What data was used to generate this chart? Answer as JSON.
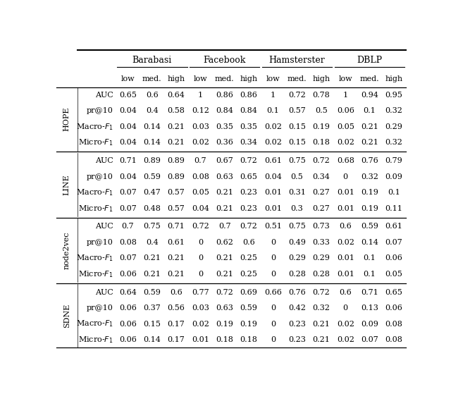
{
  "col_groups": [
    "Barabasi",
    "Facebook",
    "Hamsterster",
    "DBLP"
  ],
  "col_subheaders": [
    "low",
    "med.",
    "high",
    "low",
    "med.",
    "high",
    "low",
    "med.",
    "high",
    "low",
    "med.",
    "high"
  ],
  "row_groups": [
    "HOPE",
    "LINE",
    "node2vec",
    "SDNE"
  ],
  "data": {
    "HOPE": {
      "AUC": [
        "0.65",
        "0.6",
        "0.64",
        "1",
        "0.86",
        "0.86",
        "1",
        "0.72",
        "0.78",
        "1",
        "0.94",
        "0.95"
      ],
      "pr@10": [
        "0.04",
        "0.4",
        "0.58",
        "0.12",
        "0.84",
        "0.84",
        "0.1",
        "0.57",
        "0.5",
        "0.06",
        "0.1",
        "0.32"
      ],
      "Macro-F1": [
        "0.04",
        "0.14",
        "0.21",
        "0.03",
        "0.35",
        "0.35",
        "0.02",
        "0.15",
        "0.19",
        "0.05",
        "0.21",
        "0.29"
      ],
      "Micro-F1": [
        "0.04",
        "0.14",
        "0.21",
        "0.02",
        "0.36",
        "0.34",
        "0.02",
        "0.15",
        "0.18",
        "0.02",
        "0.21",
        "0.32"
      ]
    },
    "LINE": {
      "AUC": [
        "0.71",
        "0.89",
        "0.89",
        "0.7",
        "0.67",
        "0.72",
        "0.61",
        "0.75",
        "0.72",
        "0.68",
        "0.76",
        "0.79"
      ],
      "pr@10": [
        "0.04",
        "0.59",
        "0.89",
        "0.08",
        "0.63",
        "0.65",
        "0.04",
        "0.5",
        "0.34",
        "0",
        "0.32",
        "0.09"
      ],
      "Macro-F1": [
        "0.07",
        "0.47",
        "0.57",
        "0.05",
        "0.21",
        "0.23",
        "0.01",
        "0.31",
        "0.27",
        "0.01",
        "0.19",
        "0.1"
      ],
      "Micro-F1": [
        "0.07",
        "0.48",
        "0.57",
        "0.04",
        "0.21",
        "0.23",
        "0.01",
        "0.3",
        "0.27",
        "0.01",
        "0.19",
        "0.11"
      ]
    },
    "node2vec": {
      "AUC": [
        "0.7",
        "0.75",
        "0.71",
        "0.72",
        "0.7",
        "0.72",
        "0.51",
        "0.75",
        "0.73",
        "0.6",
        "0.59",
        "0.61"
      ],
      "pr@10": [
        "0.08",
        "0.4",
        "0.61",
        "0",
        "0.62",
        "0.6",
        "0",
        "0.49",
        "0.33",
        "0.02",
        "0.14",
        "0.07"
      ],
      "Macro-F1": [
        "0.07",
        "0.21",
        "0.21",
        "0",
        "0.21",
        "0.25",
        "0",
        "0.29",
        "0.29",
        "0.01",
        "0.1",
        "0.06"
      ],
      "Micro-F1": [
        "0.06",
        "0.21",
        "0.21",
        "0",
        "0.21",
        "0.25",
        "0",
        "0.28",
        "0.28",
        "0.01",
        "0.1",
        "0.05"
      ]
    },
    "SDNE": {
      "AUC": [
        "0.64",
        "0.59",
        "0.6",
        "0.77",
        "0.72",
        "0.69",
        "0.66",
        "0.76",
        "0.72",
        "0.6",
        "0.71",
        "0.65"
      ],
      "pr@10": [
        "0.06",
        "0.37",
        "0.56",
        "0.03",
        "0.63",
        "0.59",
        "0",
        "0.42",
        "0.32",
        "0",
        "0.13",
        "0.06"
      ],
      "Macro-F1": [
        "0.06",
        "0.15",
        "0.17",
        "0.02",
        "0.19",
        "0.19",
        "0",
        "0.23",
        "0.21",
        "0.02",
        "0.09",
        "0.08"
      ],
      "Micro-F1": [
        "0.06",
        "0.14",
        "0.17",
        "0.01",
        "0.18",
        "0.18",
        "0",
        "0.23",
        "0.21",
        "0.02",
        "0.07",
        "0.08"
      ]
    }
  },
  "figsize": [
    6.4,
    5.59
  ],
  "dpi": 100,
  "bg_color": "#ffffff",
  "text_color": "#000000",
  "line_color": "#000000",
  "font_size": 8.0,
  "header_font_size": 9.0,
  "row_label_font_size": 8.0
}
